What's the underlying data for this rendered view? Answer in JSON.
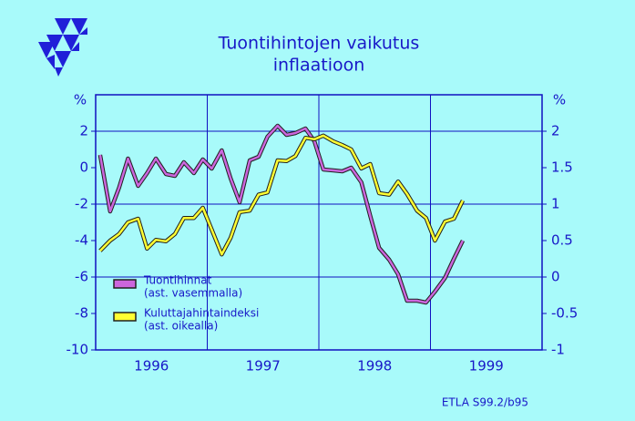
{
  "chart_data": {
    "type": "line",
    "title": [
      "Tuontihintojen  vaikutus",
      "inflaatioon"
    ],
    "ylabel": "%",
    "y2label": "%",
    "source": "ETLA S99.2/b95",
    "x": [
      1996.04,
      1996.13,
      1996.21,
      1996.29,
      1996.38,
      1996.46,
      1996.54,
      1996.63,
      1996.71,
      1996.79,
      1996.88,
      1996.96,
      1997.04,
      1997.13,
      1997.21,
      1997.29,
      1997.38,
      1997.46,
      1997.54,
      1997.63,
      1997.71,
      1997.79,
      1997.88,
      1997.96,
      1998.04,
      1998.13,
      1998.21,
      1998.29,
      1998.38,
      1998.46,
      1998.54,
      1998.63,
      1998.71,
      1998.79,
      1998.88,
      1998.96,
      1999.04,
      1999.13,
      1999.21,
      1999.29
    ],
    "series": [
      {
        "name": "Tuontihinnat",
        "legend_note": "(ast. vasemmalla)",
        "color": "#cc66dd",
        "axis": "y",
        "values": [
          0.7,
          -2.4,
          -1.1,
          0.5,
          -1,
          -0.3,
          0.5,
          -0.35,
          -0.45,
          0.3,
          -0.3,
          0.45,
          -0.05,
          0.95,
          -0.6,
          -1.9,
          0.4,
          0.6,
          1.7,
          2.3,
          1.8,
          1.9,
          2.15,
          1.45,
          -0.1,
          -0.15,
          -0.2,
          0,
          -0.8,
          -2.65,
          -4.4,
          -5.05,
          -5.85,
          -7.3,
          -7.3,
          -7.4,
          -6.8,
          -6.05,
          -5,
          -4
        ]
      },
      {
        "name": "Kuluttajahintaindeksi",
        "legend_note": "(ast. oikealla)",
        "color": "#ffff33",
        "axis": "y2",
        "values": [
          0.36,
          0.5,
          0.59,
          0.75,
          0.8,
          0.39,
          0.51,
          0.49,
          0.59,
          0.81,
          0.81,
          0.95,
          0.65,
          0.31,
          0.54,
          0.89,
          0.91,
          1.13,
          1.16,
          1.6,
          1.59,
          1.66,
          1.91,
          1.89,
          1.94,
          1.86,
          1.81,
          1.75,
          1.49,
          1.55,
          1.15,
          1.13,
          1.31,
          1.14,
          0.91,
          0.81,
          0.5,
          0.76,
          0.8,
          1.05
        ]
      }
    ],
    "xlim": [
      1996,
      2000
    ],
    "xticks": [
      {
        "value": 1996.5,
        "label": "1996"
      },
      {
        "value": 1997.5,
        "label": "1997"
      },
      {
        "value": 1998.5,
        "label": "1998"
      },
      {
        "value": 1999.5,
        "label": "1999"
      }
    ],
    "xgrid": [
      1997,
      1998,
      1999
    ],
    "ylim": [
      -10,
      4
    ],
    "yticks": [
      -10,
      -8,
      -6,
      -4,
      -2,
      0,
      2
    ],
    "y2lim": [
      -1,
      2.5
    ],
    "y2ticks": [
      -1,
      -0.5,
      0,
      0.5,
      1,
      1.5,
      2
    ],
    "ygrid": [
      -6,
      -2,
      2
    ]
  }
}
